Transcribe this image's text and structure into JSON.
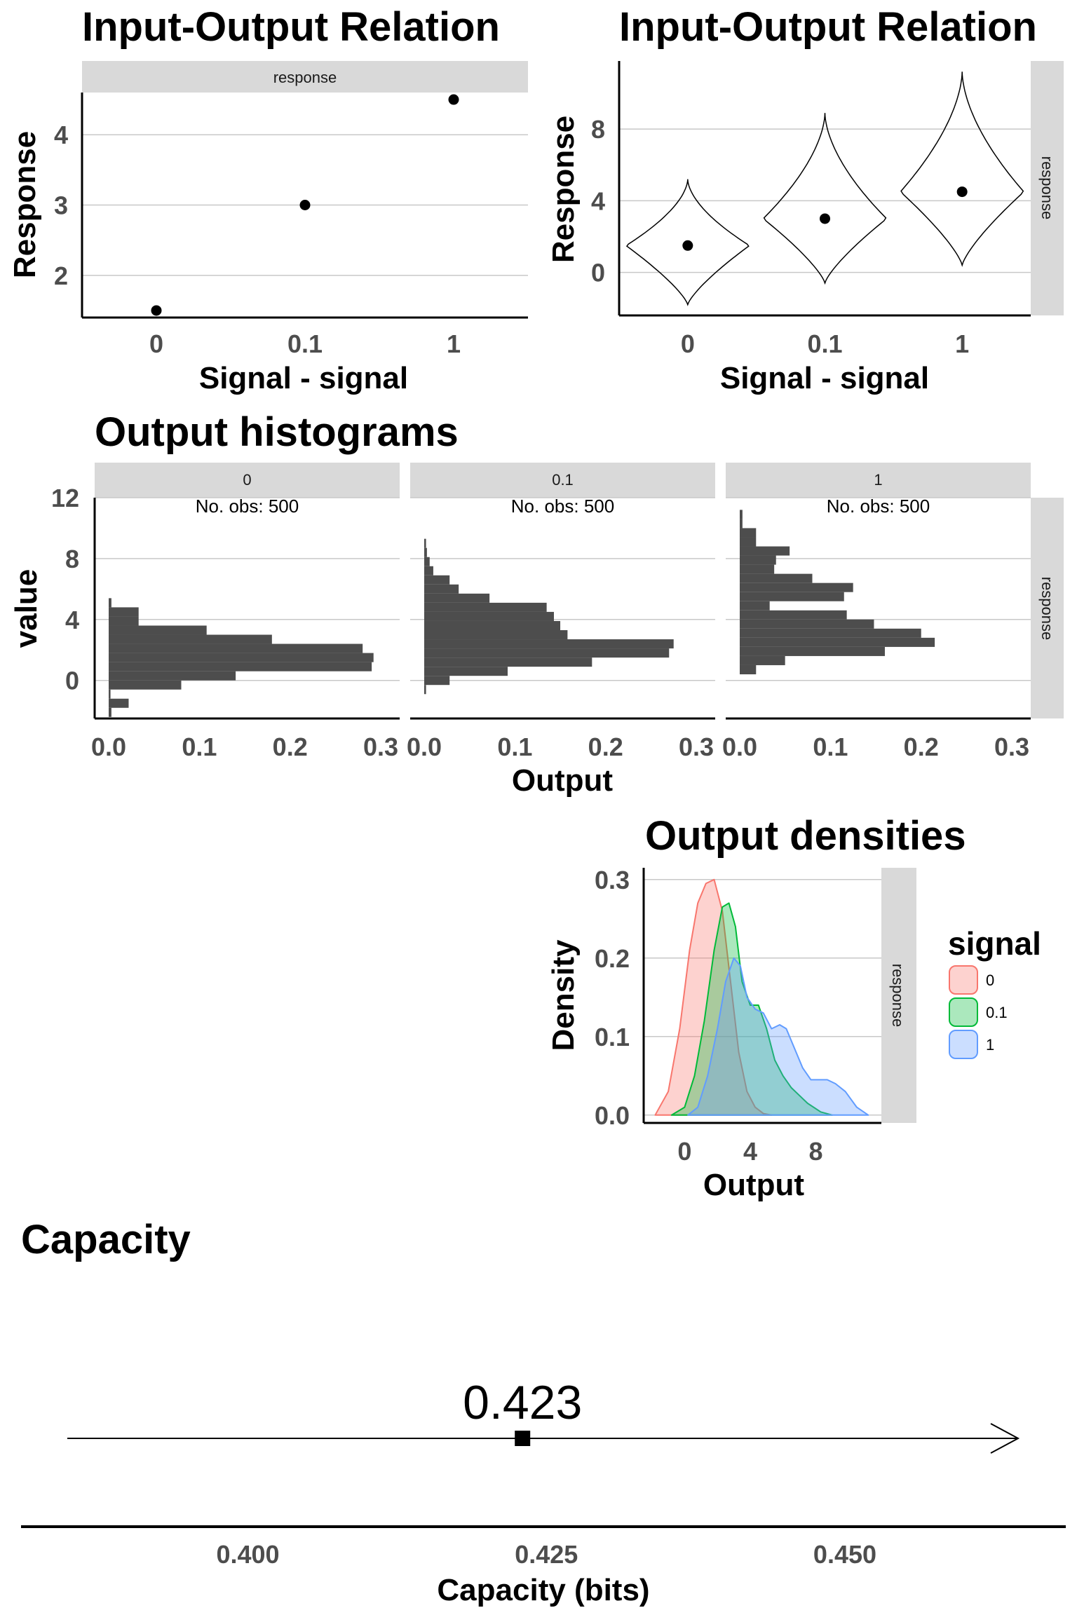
{
  "colors": {
    "grid": "#c8c8c8",
    "strip": "#d9d9d9",
    "bar": "#4d4d4d",
    "signal_0": "#f8766d",
    "signal_01": "#00ba38",
    "signal_1": "#619cff"
  },
  "chart_data": [
    {
      "id": "io_scatter",
      "type": "scatter",
      "title": "Input-Output Relation",
      "xlabel": "Signal - signal",
      "ylabel": "Response",
      "strip": "response",
      "categories": [
        "0",
        "0.1",
        "1"
      ],
      "values": [
        1.5,
        3.0,
        4.5
      ],
      "yticks": [
        "2",
        "3",
        "4"
      ],
      "ylim": [
        1.4,
        4.6
      ],
      "grid": true
    },
    {
      "id": "io_violin",
      "type": "violin",
      "title": "Input-Output Relation",
      "xlabel": "Signal - signal",
      "ylabel": "Response",
      "strip": "response",
      "categories": [
        "0",
        "0.1",
        "1"
      ],
      "means": [
        1.5,
        3.0,
        4.5
      ],
      "ranges": [
        [
          -1.8,
          5.2
        ],
        [
          -0.6,
          8.9
        ],
        [
          0.4,
          11.2
        ]
      ],
      "yticks": [
        "0",
        "4",
        "8"
      ],
      "ylim": [
        -2.4,
        11.8
      ],
      "grid": true
    },
    {
      "id": "histograms",
      "type": "bar",
      "orientation": "horizontal",
      "title": "Output histograms",
      "xlabel": "Output",
      "ylabel": "value",
      "strip_right": "response",
      "xticks": [
        "0.0",
        "0.1",
        "0.2",
        "0.3"
      ],
      "xlim": [
        0,
        0.31
      ],
      "yticks": [
        "0",
        "4",
        "8",
        "12"
      ],
      "ylim": [
        -2.5,
        12
      ],
      "panels": [
        {
          "label": "0",
          "note": "No. obs: 500",
          "bins": [
            {
              "y0": -2.4,
              "y1": -1.8,
              "value": 0.003
            },
            {
              "y0": -1.8,
              "y1": -1.2,
              "value": 0.022
            },
            {
              "y0": -1.2,
              "y1": -0.6,
              "value": 0.002
            },
            {
              "y0": -0.6,
              "y1": 0.0,
              "value": 0.08
            },
            {
              "y0": 0.0,
              "y1": 0.6,
              "value": 0.14
            },
            {
              "y0": 0.6,
              "y1": 1.2,
              "value": 0.29
            },
            {
              "y0": 1.2,
              "y1": 1.8,
              "value": 0.292
            },
            {
              "y0": 1.8,
              "y1": 2.4,
              "value": 0.28
            },
            {
              "y0": 2.4,
              "y1": 3.0,
              "value": 0.18
            },
            {
              "y0": 3.0,
              "y1": 3.6,
              "value": 0.108
            },
            {
              "y0": 3.6,
              "y1": 4.2,
              "value": 0.033
            },
            {
              "y0": 4.2,
              "y1": 4.8,
              "value": 0.033
            },
            {
              "y0": 4.8,
              "y1": 5.4,
              "value": 0.003
            }
          ]
        },
        {
          "label": "0.1",
          "note": "No. obs: 500",
          "bins": [
            {
              "y0": -0.9,
              "y1": -0.3,
              "value": 0.002
            },
            {
              "y0": -0.3,
              "y1": 0.3,
              "value": 0.028
            },
            {
              "y0": 0.3,
              "y1": 0.9,
              "value": 0.092
            },
            {
              "y0": 0.9,
              "y1": 1.5,
              "value": 0.185
            },
            {
              "y0": 1.5,
              "y1": 2.1,
              "value": 0.27
            },
            {
              "y0": 2.1,
              "y1": 2.7,
              "value": 0.275
            },
            {
              "y0": 2.7,
              "y1": 3.3,
              "value": 0.158
            },
            {
              "y0": 3.3,
              "y1": 3.9,
              "value": 0.15
            },
            {
              "y0": 3.9,
              "y1": 4.5,
              "value": 0.143
            },
            {
              "y0": 4.5,
              "y1": 5.1,
              "value": 0.135
            },
            {
              "y0": 5.1,
              "y1": 5.7,
              "value": 0.072
            },
            {
              "y0": 5.7,
              "y1": 6.3,
              "value": 0.038
            },
            {
              "y0": 6.3,
              "y1": 6.9,
              "value": 0.028
            },
            {
              "y0": 6.9,
              "y1": 7.5,
              "value": 0.01
            },
            {
              "y0": 7.5,
              "y1": 8.1,
              "value": 0.006
            },
            {
              "y0": 8.1,
              "y1": 8.7,
              "value": 0.003
            },
            {
              "y0": 8.7,
              "y1": 9.3,
              "value": 0.002
            }
          ]
        },
        {
          "label": "1",
          "note": "No. obs: 500",
          "bins": [
            {
              "y0": 0.4,
              "y1": 1.0,
              "value": 0.018
            },
            {
              "y0": 1.0,
              "y1": 1.6,
              "value": 0.05
            },
            {
              "y0": 1.6,
              "y1": 2.2,
              "value": 0.16
            },
            {
              "y0": 2.2,
              "y1": 2.8,
              "value": 0.215
            },
            {
              "y0": 2.8,
              "y1": 3.4,
              "value": 0.2
            },
            {
              "y0": 3.4,
              "y1": 4.0,
              "value": 0.148
            },
            {
              "y0": 4.0,
              "y1": 4.6,
              "value": 0.118
            },
            {
              "y0": 4.6,
              "y1": 5.2,
              "value": 0.033
            },
            {
              "y0": 5.2,
              "y1": 5.8,
              "value": 0.115
            },
            {
              "y0": 5.8,
              "y1": 6.4,
              "value": 0.125
            },
            {
              "y0": 6.4,
              "y1": 7.0,
              "value": 0.08
            },
            {
              "y0": 7.0,
              "y1": 7.6,
              "value": 0.038
            },
            {
              "y0": 7.6,
              "y1": 8.2,
              "value": 0.04
            },
            {
              "y0": 8.2,
              "y1": 8.8,
              "value": 0.055
            },
            {
              "y0": 8.8,
              "y1": 9.4,
              "value": 0.018
            },
            {
              "y0": 9.4,
              "y1": 10.0,
              "value": 0.018
            },
            {
              "y0": 10.0,
              "y1": 10.6,
              "value": 0.003
            },
            {
              "y0": 10.6,
              "y1": 11.2,
              "value": 0.003
            }
          ]
        }
      ]
    },
    {
      "id": "densities",
      "type": "area",
      "title": "Output densities",
      "xlabel": "Output",
      "ylabel": "Density",
      "strip_right": "response",
      "xticks": [
        "0",
        "4",
        "8"
      ],
      "xlim": [
        -2.5,
        12
      ],
      "yticks": [
        "0.0",
        "0.1",
        "0.2",
        "0.3"
      ],
      "ylim": [
        -0.01,
        0.315
      ],
      "legend_title": "signal",
      "legend_position": "right",
      "series": [
        {
          "name": "0",
          "x": [
            -1.8,
            -1,
            -0.3,
            0.3,
            0.8,
            1.3,
            1.8,
            2.3,
            2.8,
            3.3,
            3.8,
            4.3,
            4.8,
            5.3
          ],
          "y": [
            0.0,
            0.03,
            0.11,
            0.21,
            0.27,
            0.295,
            0.3,
            0.26,
            0.17,
            0.08,
            0.03,
            0.01,
            0.002,
            0.0
          ]
        },
        {
          "name": "0.1",
          "x": [
            -0.8,
            0,
            0.6,
            1.2,
            1.8,
            2.3,
            2.7,
            3.1,
            3.5,
            4.0,
            4.5,
            5.0,
            5.5,
            6.0,
            6.5,
            7.0,
            7.5,
            8.3,
            9.0
          ],
          "y": [
            0.0,
            0.01,
            0.05,
            0.12,
            0.21,
            0.265,
            0.27,
            0.24,
            0.17,
            0.14,
            0.14,
            0.11,
            0.07,
            0.05,
            0.035,
            0.025,
            0.015,
            0.004,
            0.0
          ]
        },
        {
          "name": "1",
          "x": [
            0.2,
            0.8,
            1.4,
            2.0,
            2.5,
            3.0,
            3.4,
            3.8,
            4.3,
            4.8,
            5.3,
            5.8,
            6.2,
            6.7,
            7.2,
            7.7,
            8.2,
            8.7,
            9.2,
            9.8,
            10.5,
            11.2
          ],
          "y": [
            0.0,
            0.01,
            0.05,
            0.11,
            0.17,
            0.2,
            0.19,
            0.15,
            0.135,
            0.13,
            0.11,
            0.115,
            0.11,
            0.085,
            0.06,
            0.045,
            0.045,
            0.045,
            0.04,
            0.03,
            0.01,
            0.0
          ]
        }
      ]
    },
    {
      "id": "capacity",
      "type": "scatter",
      "title": "Capacity",
      "xlabel": "Capacity (bits)",
      "value": 0.423,
      "value_label": "0.423",
      "xticks": [
        "0.400",
        "0.425",
        "0.450"
      ],
      "xtick_values": [
        0.4,
        0.425,
        0.45
      ],
      "xlim": [
        0.381,
        0.4685
      ],
      "arrow": true
    }
  ]
}
